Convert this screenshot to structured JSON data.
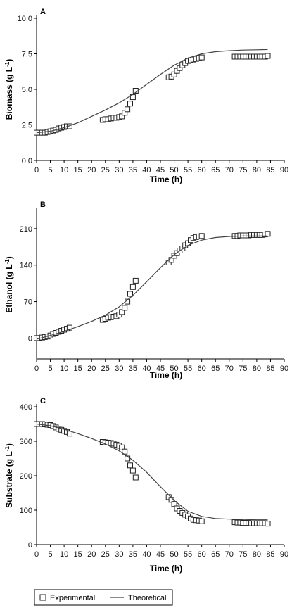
{
  "legend": {
    "experimental_label": "Experimental",
    "theoretical_label": "Theoretical"
  },
  "chart_data": [
    {
      "panel": "A",
      "type": "scatter",
      "xlabel": "Time (h)",
      "ylabel": "Biomass (g L-1)",
      "xlim": [
        0,
        90
      ],
      "ylim": [
        0,
        10
      ],
      "xticks": [
        0,
        5,
        10,
        15,
        20,
        25,
        30,
        35,
        40,
        45,
        50,
        55,
        60,
        65,
        70,
        75,
        80,
        85,
        90
      ],
      "yticks": [
        0.0,
        2.5,
        5.0,
        7.5,
        10.0
      ],
      "ytick_labels": [
        "0.0",
        "2.5",
        "5.0",
        "7.5",
        "10.0"
      ],
      "series": [
        {
          "name": "Experimental",
          "kind": "markers",
          "x": [
            0,
            1,
            2,
            3,
            4,
            5,
            6,
            7,
            8,
            9,
            10,
            11,
            12,
            24,
            25,
            26,
            27,
            28,
            29,
            30,
            31,
            32,
            33,
            34,
            35,
            36,
            48,
            49,
            50,
            51,
            52,
            53,
            54,
            55,
            56,
            57,
            58,
            59,
            60,
            72,
            73,
            74,
            75,
            76,
            77,
            78,
            79,
            80,
            81,
            82,
            83,
            84
          ],
          "y": [
            1.95,
            1.95,
            1.95,
            1.95,
            2.0,
            2.05,
            2.1,
            2.15,
            2.25,
            2.3,
            2.35,
            2.4,
            2.4,
            2.85,
            2.9,
            2.9,
            2.95,
            3.0,
            3.0,
            3.05,
            3.1,
            3.35,
            3.6,
            4.0,
            4.45,
            4.9,
            5.85,
            5.9,
            6.05,
            6.3,
            6.5,
            6.7,
            6.85,
            7.0,
            7.05,
            7.1,
            7.15,
            7.2,
            7.25,
            7.3,
            7.3,
            7.3,
            7.3,
            7.3,
            7.3,
            7.3,
            7.3,
            7.3,
            7.3,
            7.3,
            7.3,
            7.35
          ]
        },
        {
          "name": "Theoretical",
          "kind": "line",
          "x": [
            0,
            5,
            10,
            15,
            20,
            25,
            30,
            35,
            40,
            45,
            50,
            55,
            60,
            65,
            70,
            75,
            80,
            84
          ],
          "y": [
            1.95,
            2.05,
            2.3,
            2.65,
            3.1,
            3.55,
            4.05,
            4.65,
            5.35,
            6.05,
            6.7,
            7.2,
            7.5,
            7.65,
            7.72,
            7.76,
            7.78,
            7.8
          ]
        }
      ]
    },
    {
      "panel": "B",
      "type": "scatter",
      "xlabel": "Time (h)",
      "ylabel": "Ethanol (g L-1)",
      "xlim": [
        0,
        90
      ],
      "ylim": [
        -40,
        245
      ],
      "xticks": [
        0,
        5,
        10,
        15,
        20,
        25,
        30,
        35,
        40,
        45,
        50,
        55,
        60,
        65,
        70,
        75,
        80,
        85,
        90
      ],
      "yticks": [
        0,
        70,
        140,
        210
      ],
      "ytick_labels": [
        "0",
        "70",
        "140",
        "210"
      ],
      "series": [
        {
          "name": "Experimental",
          "kind": "markers",
          "x": [
            0,
            1,
            2,
            3,
            4,
            5,
            6,
            7,
            8,
            9,
            10,
            11,
            12,
            24,
            25,
            26,
            27,
            28,
            29,
            30,
            31,
            32,
            33,
            34,
            35,
            36,
            48,
            49,
            50,
            51,
            52,
            53,
            54,
            55,
            56,
            57,
            58,
            59,
            60,
            72,
            73,
            74,
            75,
            76,
            77,
            78,
            79,
            80,
            81,
            82,
            83,
            84
          ],
          "y": [
            0,
            0,
            1,
            2,
            3,
            5,
            8,
            10,
            12,
            14,
            16,
            18,
            20,
            35,
            37,
            39,
            40,
            41,
            42,
            45,
            50,
            58,
            70,
            85,
            98,
            110,
            145,
            150,
            158,
            163,
            168,
            172,
            178,
            182,
            188,
            192,
            194,
            195,
            196,
            196,
            196,
            197,
            197,
            197,
            197,
            198,
            198,
            198,
            198,
            198,
            199,
            200
          ]
        },
        {
          "name": "Theoretical",
          "kind": "line",
          "x": [
            0,
            5,
            10,
            15,
            20,
            25,
            30,
            35,
            40,
            45,
            50,
            55,
            60,
            65,
            70,
            75,
            80,
            84
          ],
          "y": [
            -2,
            5,
            13,
            22,
            32,
            44,
            60,
            82,
            108,
            135,
            160,
            178,
            188,
            193,
            195,
            196,
            196,
            196
          ]
        }
      ]
    },
    {
      "panel": "C",
      "type": "scatter",
      "xlabel": "Time (h)",
      "ylabel": "Substrate (g L-1)",
      "xlim": [
        0,
        90
      ],
      "ylim": [
        0,
        400
      ],
      "xticks": [
        0,
        5,
        10,
        15,
        20,
        25,
        30,
        35,
        40,
        45,
        50,
        55,
        60,
        65,
        70,
        75,
        80,
        85,
        90
      ],
      "yticks": [
        0,
        100,
        200,
        300,
        400
      ],
      "ytick_labels": [
        "0",
        "100",
        "200",
        "300",
        "400"
      ],
      "series": [
        {
          "name": "Experimental",
          "kind": "markers",
          "x": [
            0,
            1,
            2,
            3,
            4,
            5,
            6,
            7,
            8,
            9,
            10,
            11,
            12,
            24,
            25,
            26,
            27,
            28,
            29,
            30,
            31,
            32,
            33,
            34,
            35,
            36,
            48,
            49,
            50,
            51,
            52,
            53,
            54,
            55,
            56,
            57,
            58,
            59,
            60,
            72,
            73,
            74,
            75,
            76,
            77,
            78,
            79,
            80,
            81,
            82,
            83,
            84
          ],
          "y": [
            350,
            350,
            350,
            349,
            348,
            347,
            344,
            340,
            336,
            333,
            330,
            327,
            322,
            298,
            297,
            296,
            295,
            293,
            290,
            287,
            282,
            270,
            250,
            230,
            215,
            195,
            138,
            130,
            118,
            105,
            98,
            92,
            87,
            82,
            76,
            72,
            71,
            70,
            68,
            65,
            64,
            64,
            63,
            63,
            63,
            62,
            62,
            62,
            62,
            62,
            62,
            61
          ]
        },
        {
          "name": "Theoretical",
          "kind": "line",
          "x": [
            0,
            5,
            10,
            15,
            20,
            25,
            30,
            35,
            40,
            45,
            50,
            55,
            60,
            65,
            70,
            75,
            80,
            84
          ],
          "y": [
            350,
            345,
            335,
            322,
            308,
            292,
            272,
            245,
            210,
            168,
            128,
            97,
            82,
            76,
            74,
            73,
            72,
            72
          ]
        }
      ]
    }
  ]
}
